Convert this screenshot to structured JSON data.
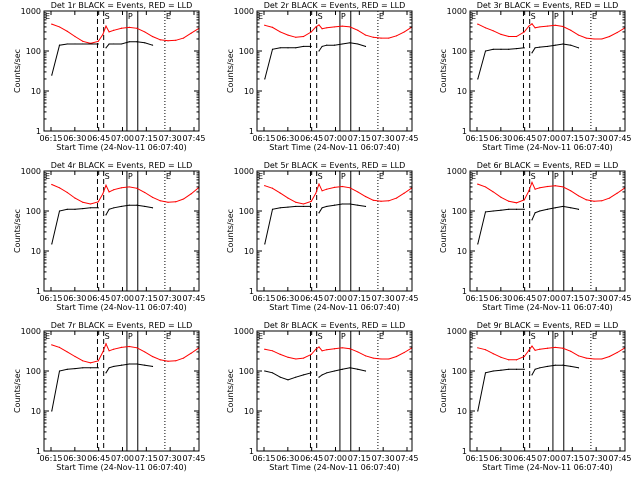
{
  "figure": {
    "ylabel": "Counts/sec",
    "xlabel_template": "Start Time (24-Nov-11 06:07:40)",
    "x_tick_labels": [
      "06:15",
      "06:30",
      "06:45",
      "07:00",
      "07:15",
      "07:30",
      "07:45"
    ],
    "y_tick_labels": [
      "1",
      "10",
      "100",
      "1000"
    ],
    "markers": [
      {
        "label": "E",
        "time_min": 0.0,
        "style": "dotted"
      },
      {
        "label": "S",
        "time_min": 38.5,
        "style": "dashed"
      },
      {
        "label": "P",
        "time_min": 53.5,
        "style": "solid"
      },
      {
        "label": "E",
        "time_min": 78.0,
        "style": "dotted"
      }
    ],
    "colors": {
      "events": "#000000",
      "lld": "#ff0000",
      "axes": "#000000"
    }
  },
  "chart_data": [
    {
      "type": "line",
      "title": "Det 1r BLACK = Events, RED = LLD",
      "xlabel": "Start Time (24-Nov-11 06:07:40)",
      "ylabel": "Counts/sec",
      "xlim": [
        0,
        100
      ],
      "ylim": [
        1,
        1000
      ],
      "yscale": "log",
      "x": [
        5,
        10,
        15,
        20,
        25,
        30,
        35,
        38,
        40,
        42,
        45,
        50,
        55,
        60,
        65,
        70,
        75,
        80,
        85,
        90,
        95,
        100
      ],
      "series": [
        {
          "name": "LLD",
          "values": [
            470,
            400,
            310,
            230,
            175,
            155,
            175,
            260,
            420,
            300,
            330,
            370,
            390,
            370,
            300,
            230,
            190,
            180,
            185,
            210,
            280,
            370
          ]
        },
        {
          "name": "Events",
          "values": [
            25,
            140,
            150,
            150,
            150,
            150,
            150,
            null,
            120,
            150,
            150,
            150,
            170,
            170,
            160,
            140,
            null,
            null,
            null,
            null,
            null,
            null
          ]
        }
      ]
    },
    {
      "type": "line",
      "title": "Det 2r BLACK = Events, RED = LLD",
      "xlabel": "Start Time (24-Nov-11 06:07:40)",
      "ylabel": "Counts/sec",
      "xlim": [
        0,
        100
      ],
      "ylim": [
        1,
        1000
      ],
      "yscale": "log",
      "x": [
        5,
        10,
        15,
        20,
        25,
        30,
        35,
        38,
        40,
        42,
        45,
        50,
        55,
        60,
        65,
        70,
        75,
        80,
        85,
        90,
        95,
        100
      ],
      "series": [
        {
          "name": "LLD",
          "values": [
            440,
            390,
            300,
            250,
            220,
            230,
            300,
            400,
            450,
            360,
            380,
            400,
            420,
            400,
            330,
            250,
            220,
            210,
            210,
            240,
            300,
            400
          ]
        },
        {
          "name": "Events",
          "values": [
            20,
            110,
            120,
            120,
            120,
            130,
            130,
            null,
            100,
            130,
            140,
            140,
            150,
            160,
            150,
            130,
            null,
            null,
            null,
            null,
            null,
            null
          ]
        }
      ]
    },
    {
      "type": "line",
      "title": "Det 3r BLACK = Events, RED = LLD",
      "xlabel": "Start Time (24-Nov-11 06:07:40)",
      "ylabel": "Counts/sec",
      "xlim": [
        0,
        100
      ],
      "ylim": [
        1,
        1000
      ],
      "yscale": "log",
      "x": [
        5,
        10,
        15,
        20,
        25,
        30,
        35,
        38,
        40,
        42,
        45,
        50,
        55,
        60,
        65,
        70,
        75,
        80,
        85,
        90,
        95,
        100
      ],
      "series": [
        {
          "name": "LLD",
          "values": [
            470,
            380,
            320,
            260,
            230,
            230,
            300,
            420,
            480,
            380,
            400,
            420,
            440,
            410,
            330,
            250,
            210,
            200,
            200,
            230,
            290,
            380
          ]
        },
        {
          "name": "Events",
          "values": [
            20,
            100,
            110,
            110,
            110,
            115,
            120,
            null,
            90,
            120,
            125,
            130,
            140,
            150,
            140,
            120,
            null,
            null,
            null,
            null,
            null,
            null
          ]
        }
      ]
    },
    {
      "type": "line",
      "title": "Det 4r BLACK = Events, RED = LLD",
      "xlabel": "Start Time (24-Nov-11 06:07:40)",
      "ylabel": "Counts/sec",
      "xlim": [
        0,
        100
      ],
      "ylim": [
        1,
        1000
      ],
      "yscale": "log",
      "x": [
        5,
        10,
        15,
        20,
        25,
        30,
        35,
        38,
        40,
        42,
        45,
        50,
        55,
        60,
        65,
        70,
        75,
        80,
        85,
        90,
        95,
        100
      ],
      "series": [
        {
          "name": "LLD",
          "values": [
            460,
            380,
            290,
            210,
            165,
            150,
            170,
            270,
            440,
            300,
            340,
            380,
            400,
            370,
            290,
            220,
            180,
            165,
            170,
            200,
            270,
            390
          ]
        },
        {
          "name": "Events",
          "values": [
            15,
            100,
            110,
            110,
            115,
            120,
            120,
            null,
            80,
            110,
            120,
            130,
            140,
            140,
            130,
            120,
            null,
            null,
            null,
            null,
            null,
            null
          ]
        }
      ]
    },
    {
      "type": "line",
      "title": "Det 5r BLACK = Events, RED = LLD",
      "xlabel": "Start Time (24-Nov-11 06:07:40)",
      "ylabel": "Counts/sec",
      "xlim": [
        0,
        100
      ],
      "ylim": [
        1,
        1000
      ],
      "yscale": "log",
      "x": [
        5,
        10,
        15,
        20,
        25,
        30,
        35,
        38,
        40,
        42,
        45,
        50,
        55,
        60,
        65,
        70,
        75,
        80,
        85,
        90,
        95,
        100
      ],
      "series": [
        {
          "name": "LLD",
          "values": [
            430,
            370,
            280,
            210,
            165,
            150,
            175,
            280,
            470,
            320,
            350,
            390,
            410,
            380,
            300,
            230,
            185,
            175,
            180,
            210,
            280,
            380
          ]
        },
        {
          "name": "Events",
          "values": [
            15,
            110,
            120,
            125,
            130,
            130,
            130,
            null,
            90,
            120,
            130,
            140,
            150,
            150,
            140,
            130,
            null,
            null,
            null,
            null,
            null,
            null
          ]
        }
      ]
    },
    {
      "type": "line",
      "title": "Det 6r BLACK = Events, RED = LLD",
      "xlabel": "Start Time (24-Nov-11 06:07:40)",
      "ylabel": "Counts/sec",
      "xlim": [
        0,
        100
      ],
      "ylim": [
        1,
        1000
      ],
      "yscale": "log",
      "x": [
        5,
        10,
        15,
        20,
        25,
        30,
        35,
        38,
        40,
        42,
        45,
        50,
        55,
        60,
        65,
        70,
        75,
        80,
        85,
        90,
        95,
        100
      ],
      "series": [
        {
          "name": "LLD",
          "values": [
            470,
            400,
            300,
            220,
            175,
            160,
            190,
            320,
            520,
            350,
            380,
            410,
            430,
            400,
            320,
            240,
            190,
            175,
            180,
            210,
            280,
            380
          ]
        },
        {
          "name": "Events",
          "values": [
            15,
            95,
            100,
            105,
            110,
            110,
            110,
            null,
            60,
            90,
            100,
            110,
            120,
            130,
            120,
            110,
            null,
            null,
            null,
            null,
            null,
            null
          ]
        }
      ]
    },
    {
      "type": "line",
      "title": "Det 7r BLACK = Events, RED = LLD",
      "xlabel": "Start Time (24-Nov-11 06:07:40)",
      "ylabel": "Counts/sec",
      "xlim": [
        0,
        100
      ],
      "ylim": [
        1,
        1000
      ],
      "yscale": "log",
      "x": [
        5,
        10,
        15,
        20,
        25,
        30,
        35,
        38,
        40,
        42,
        45,
        50,
        55,
        60,
        65,
        70,
        75,
        80,
        85,
        90,
        95,
        100
      ],
      "series": [
        {
          "name": "LLD",
          "values": [
            450,
            390,
            300,
            230,
            180,
            160,
            180,
            300,
            480,
            320,
            350,
            390,
            410,
            380,
            300,
            230,
            190,
            175,
            180,
            210,
            280,
            380
          ]
        },
        {
          "name": "Events",
          "values": [
            10,
            100,
            110,
            115,
            120,
            120,
            120,
            null,
            90,
            120,
            130,
            140,
            150,
            150,
            140,
            130,
            null,
            null,
            null,
            null,
            null,
            null
          ]
        }
      ]
    },
    {
      "type": "line",
      "title": "Det 8r BLACK = Events, RED = LLD",
      "xlabel": "Start Time (24-Nov-11 06:07:40)",
      "ylabel": "Counts/sec",
      "xlim": [
        0,
        100
      ],
      "ylim": [
        1,
        1000
      ],
      "yscale": "log",
      "x": [
        5,
        10,
        15,
        20,
        25,
        30,
        35,
        38,
        40,
        42,
        45,
        50,
        55,
        60,
        65,
        70,
        75,
        80,
        85,
        90,
        95,
        100
      ],
      "series": [
        {
          "name": "LLD",
          "values": [
            350,
            320,
            260,
            220,
            200,
            210,
            260,
            350,
            400,
            320,
            340,
            360,
            380,
            360,
            300,
            240,
            210,
            200,
            200,
            230,
            290,
            380
          ]
        },
        {
          "name": "Events",
          "values": [
            100,
            90,
            70,
            60,
            70,
            80,
            90,
            null,
            70,
            80,
            90,
            100,
            110,
            120,
            110,
            100,
            null,
            null,
            null,
            null,
            null,
            null
          ]
        }
      ]
    },
    {
      "type": "line",
      "title": "Det 9r BLACK = Events, RED = LLD",
      "xlabel": "Start Time (24-Nov-11 06:07:40)",
      "ylabel": "Counts/sec",
      "xlim": [
        0,
        100
      ],
      "ylim": [
        1,
        1000
      ],
      "yscale": "log",
      "x": [
        5,
        10,
        15,
        20,
        25,
        30,
        35,
        38,
        40,
        42,
        45,
        50,
        55,
        60,
        65,
        70,
        75,
        80,
        85,
        90,
        95,
        100
      ],
      "series": [
        {
          "name": "LLD",
          "values": [
            380,
            340,
            270,
            220,
            190,
            190,
            230,
            330,
            420,
            330,
            350,
            370,
            390,
            370,
            310,
            240,
            210,
            200,
            200,
            230,
            290,
            380
          ]
        },
        {
          "name": "Events",
          "values": [
            10,
            90,
            100,
            105,
            110,
            110,
            110,
            null,
            80,
            110,
            120,
            130,
            140,
            140,
            130,
            120,
            null,
            null,
            null,
            null,
            null,
            null
          ]
        }
      ]
    }
  ]
}
